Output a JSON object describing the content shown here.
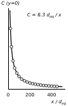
{
  "chart_data": {
    "type": "scatter",
    "y_label": "C (y=0)",
    "x_label": "x / deq",
    "annotations": [
      "C = 6.3 deq / x"
    ],
    "xlim": [
      0,
      520
    ],
    "xticks": [
      0,
      200,
      400
    ],
    "ylim": [
      0,
      0.4
    ],
    "grid": false,
    "tick_labels": "x",
    "series": [
      {
        "type": "scatter",
        "marker": "circle",
        "color": "#000000",
        "x": [
          20,
          30,
          45,
          60,
          80,
          100,
          125,
          150,
          175,
          200,
          225,
          250,
          275,
          300,
          325,
          350,
          375,
          400,
          425,
          450
        ],
        "values": [
          0.3,
          0.21,
          0.14,
          0.105,
          0.08,
          0.063,
          0.05,
          0.042,
          0.036,
          0.031,
          0.028,
          0.025,
          0.023,
          0.021,
          0.019,
          0.018,
          0.017,
          0.016,
          0.015,
          0.014
        ]
      },
      {
        "type": "line",
        "line_style": "solid",
        "color": "#000000",
        "x": [
          16,
          20,
          30,
          50,
          80,
          100,
          150,
          200,
          250,
          300,
          350,
          400,
          450,
          500
        ],
        "values": [
          0.39,
          0.32,
          0.21,
          0.126,
          0.079,
          0.063,
          0.042,
          0.032,
          0.025,
          0.021,
          0.018,
          0.016,
          0.014,
          0.013
        ]
      }
    ]
  }
}
